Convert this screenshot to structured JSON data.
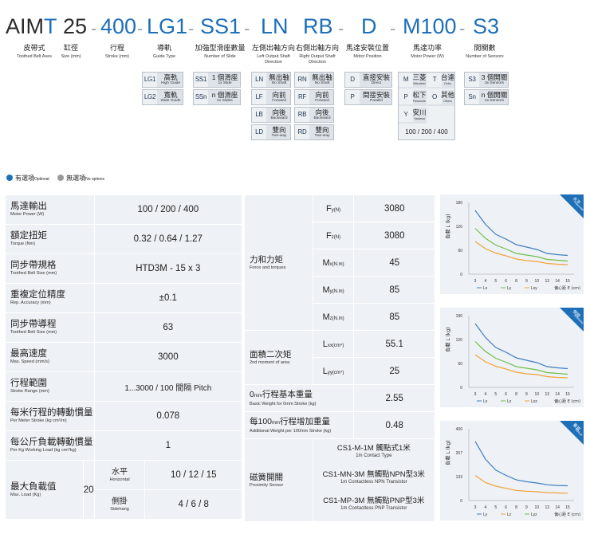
{
  "model_code": {
    "seg_aim": "AIM",
    "seg_t": "T",
    "seg_25": "25",
    "seg_400": "400",
    "seg_lg1": "LG1",
    "seg_ss1": "SS1",
    "seg_ln": "LN",
    "seg_rb": "RB",
    "seg_d": "D",
    "seg_m100": "M100",
    "seg_s3": "S3",
    "dash": "-"
  },
  "labels": [
    {
      "zh": "皮帶式",
      "en": "Toothed Belt Axes"
    },
    {
      "zh": "缸徑",
      "en": "Size (mm)"
    },
    {
      "zh": "行程",
      "en": "Stroke (mm)"
    },
    {
      "zh": "導軌",
      "en": "Guide Type"
    },
    {
      "zh": "加強型滑座數量",
      "en": "Number of Slide"
    },
    {
      "zh": "左側出軸方向",
      "en": "Left Output Shaft Direction"
    },
    {
      "zh": "右側出軸方向",
      "en": "Right Output Shaft Direction"
    },
    {
      "zh": "馬達安裝位置",
      "en": "Motor Position"
    },
    {
      "zh": "馬達功率",
      "en": "Motor Power (W)"
    },
    {
      "zh": "開關數",
      "en": "Number of Sensors"
    }
  ],
  "guide": [
    {
      "code": "LG1",
      "zh": "高軌",
      "en": "High Guide"
    },
    {
      "code": "LG2",
      "zh": "寬軌",
      "en": "Wide Guide"
    }
  ],
  "slide": [
    {
      "code": "SS1",
      "zh": "1 個滑座",
      "en": "1x Slide"
    },
    {
      "code": "SSn",
      "zh": "n 個滑座",
      "en": "nx Slides"
    }
  ],
  "left_shaft": [
    {
      "code": "LN",
      "zh": "無出軸",
      "en": "No Shaft"
    },
    {
      "code": "LF",
      "zh": "向前",
      "en": "Forward"
    },
    {
      "code": "LB",
      "zh": "向後",
      "en": "Backward"
    },
    {
      "code": "LD",
      "zh": "雙向",
      "en": "Two-way"
    }
  ],
  "right_shaft": [
    {
      "code": "RN",
      "zh": "無出軸",
      "en": "No Shaft"
    },
    {
      "code": "RF",
      "zh": "向前",
      "en": "Forward"
    },
    {
      "code": "RB",
      "zh": "向後",
      "en": "Backward"
    },
    {
      "code": "RD",
      "zh": "雙向",
      "en": "Two-way"
    }
  ],
  "motor_pos": [
    {
      "code": "D",
      "zh": "直接安裝",
      "en": "Direct"
    },
    {
      "code": "P",
      "zh": "間接安裝",
      "en": "Parallel"
    }
  ],
  "motor_brand": [
    {
      "code": "M",
      "zh": "三菱",
      "en": "Mitsubishi"
    },
    {
      "code": "T",
      "zh": "台達",
      "en": "Delta"
    },
    {
      "code": "P",
      "zh": "松下",
      "en": "Panasonic"
    },
    {
      "code": "O",
      "zh": "其他",
      "en": "Others"
    },
    {
      "code": "Y",
      "zh": "安川",
      "en": "Yaskawa"
    }
  ],
  "motor_power_values": "100 / 200 / 400",
  "sensors": [
    {
      "code": "S3",
      "zh": "3 個開關",
      "en": "3x Sensors"
    },
    {
      "code": "Sn",
      "zh": "n 個開關",
      "en": "nx Sensors"
    }
  ],
  "legend": {
    "optional_zh": "有選項",
    "optional_en": "Optional",
    "none_zh": "無選項",
    "none_en": "No options",
    "optional_color": "#1d6fb8",
    "none_color": "#9a9a9a"
  },
  "spec_left": [
    {
      "zh": "馬達輸出",
      "en": "Motor Power (W)",
      "value": "100 / 200 / 400"
    },
    {
      "zh": "額定扭矩",
      "en": "Torque (Nm)",
      "value": "0.32 / 0.64 / 1.27"
    },
    {
      "zh": "同步帶規格",
      "en": "Toothed Belt Size (mm)",
      "value": "HTD3M - 15 x 3"
    },
    {
      "zh": "重複定位精度",
      "en": "Rep. Accuracy (mm)",
      "value": "±0.1"
    },
    {
      "zh": "同步帶導程",
      "en": "Toothed Belt Size (mm)",
      "value": "63"
    },
    {
      "zh": "最高速度",
      "en": "Max. Speed (mm/s)",
      "value": "3000"
    },
    {
      "zh": "行程範圍",
      "en": "Stroke Range (mm)",
      "value": "1...3000 / 100 間隔 Pitch"
    },
    {
      "zh": "每米行程的轉動慣量",
      "en": "Per Meter Stroke (kg cm²/m)",
      "value": "0.078"
    },
    {
      "zh": "每公斤負載轉動慣量",
      "en": "Per Kg Working Load (kg cm²/kg)",
      "value": "1"
    }
  ],
  "max_load": {
    "zh": "最大負載值",
    "en": "Max. Load (Kg)",
    "value": "20",
    "horizontal_zh": "水平",
    "horizontal_en": "Horizontal",
    "horizontal_value": "10 / 12 / 15",
    "side_zh": "側掛",
    "side_en": "Sidehang",
    "side_value": "4 / 6 / 8"
  },
  "force": {
    "zh": "力和力矩",
    "en": "Force and torques",
    "rows": [
      {
        "sym": "F",
        "sub": "y",
        "unit": "(N)",
        "value": "3080"
      },
      {
        "sym": "F",
        "sub": "z",
        "unit": "(N)",
        "value": "3080"
      },
      {
        "sym": "M",
        "sub": "x",
        "unit": "(N.m)",
        "value": "45"
      },
      {
        "sym": "M",
        "sub": "y",
        "unit": "(N.m)",
        "value": "85"
      },
      {
        "sym": "M",
        "sub": "z",
        "unit": "(N.m)",
        "value": "85"
      }
    ]
  },
  "moment": {
    "zh": "面積二次矩",
    "en": "2nd moment of area",
    "rows": [
      {
        "sym": "L",
        "sub": "xx",
        "unit": "(cm⁴)",
        "value": "55.1"
      },
      {
        "sym": "L",
        "sub": "yy",
        "unit": "(cm⁴)",
        "value": "25"
      }
    ]
  },
  "weight0": {
    "zh_pre": "0",
    "zh_unit": "mm",
    "zh_post": "行程基本重量",
    "en": "Basic Weight for 0mm Stroke (kg)",
    "value": "2.55"
  },
  "weight100": {
    "zh_pre": "每100",
    "zh_unit": "mm",
    "zh_post": "行程增加重量",
    "en": "Additional Weight per 100mm Stroke (kg)",
    "value": "0.48"
  },
  "sensor_spec": {
    "zh": "磁簧開關",
    "en": "Proximity Sensor",
    "rows": [
      {
        "zh": "CS1-M-1M 觸點式1米",
        "en": "1m Contact Type"
      },
      {
        "zh": "CS1-MN-3M 無觸點NPN型3米",
        "en": "1m Contactless NPN Transistor"
      },
      {
        "zh": "CS1-MP-3M 無觸點PNP型3米",
        "en": "1m Contactless PNP Transistor"
      }
    ]
  },
  "chart_data": [
    {
      "type": "line",
      "corner_zh": "水平",
      "corner_en": "Horizontal",
      "ylabel": "負載 L (kg)",
      "xlabel": "偏心距 E (cm)",
      "yticks": [
        0,
        60,
        120,
        180
      ],
      "ylim": [
        0,
        180
      ],
      "xticks": [
        3,
        4,
        5,
        6,
        8,
        9,
        10,
        13,
        14,
        15
      ],
      "xlim": [
        3,
        15
      ],
      "colors": [
        "#3d7fc1",
        "#6fbf4a",
        "#f0a33a"
      ],
      "series": [
        {
          "name": "Lx",
          "x": [
            3,
            4,
            5,
            6,
            8,
            9,
            10,
            13,
            14,
            15
          ],
          "values": [
            160,
            125,
            100,
            88,
            74,
            68,
            62,
            52,
            49,
            47
          ]
        },
        {
          "name": "Ly",
          "x": [
            3,
            4,
            5,
            6,
            8,
            9,
            10,
            13,
            14,
            15
          ],
          "values": [
            115,
            90,
            73,
            63,
            52,
            48,
            44,
            37,
            35,
            33
          ]
        },
        {
          "name": "Lxy",
          "x": [
            3,
            4,
            5,
            6,
            8,
            9,
            10,
            13,
            14,
            15
          ],
          "values": [
            82,
            64,
            53,
            46,
            38,
            34,
            32,
            27,
            25,
            24
          ]
        }
      ]
    },
    {
      "type": "line",
      "corner_zh": "側掛",
      "corner_en": "Sidehang",
      "ylabel": "負載 L (kg)",
      "xlabel": "偏心距 E (cm)",
      "yticks": [
        0,
        60,
        120,
        180
      ],
      "ylim": [
        0,
        180
      ],
      "xticks": [
        3,
        4,
        5,
        6,
        8,
        9,
        10,
        13,
        14,
        15
      ],
      "xlim": [
        3,
        15
      ],
      "colors": [
        "#3d7fc1",
        "#6fbf4a",
        "#f0a33a"
      ],
      "series": [
        {
          "name": "Lx",
          "x": [
            3,
            4,
            5,
            6,
            8,
            9,
            10,
            13,
            14,
            15
          ],
          "values": [
            160,
            125,
            100,
            88,
            74,
            68,
            62,
            52,
            49,
            47
          ]
        },
        {
          "name": "Lz",
          "x": [
            3,
            4,
            5,
            6,
            8,
            9,
            10,
            13,
            14,
            15
          ],
          "values": [
            115,
            90,
            73,
            63,
            52,
            48,
            44,
            37,
            35,
            33
          ]
        },
        {
          "name": "Lxz",
          "x": [
            3,
            4,
            5,
            6,
            8,
            9,
            10,
            13,
            14,
            15
          ],
          "values": [
            82,
            64,
            53,
            46,
            38,
            34,
            32,
            27,
            25,
            24
          ]
        }
      ]
    },
    {
      "type": "line",
      "corner_zh": "垂直",
      "corner_en": "Vertical",
      "ylabel": "負載 L (kg)",
      "xlabel": "偏心距 E (cm)",
      "yticks": [
        0,
        133,
        267,
        400
      ],
      "ylim": [
        0,
        400
      ],
      "xticks": [
        3,
        4,
        5,
        6,
        8,
        9,
        10,
        13,
        14,
        15
      ],
      "xlim": [
        3,
        15
      ],
      "colors": [
        "#3d7fc1",
        "#f0a33a",
        "#6fbf4a"
      ],
      "series": [
        {
          "name": "Ly",
          "x": [
            3,
            4,
            5,
            6,
            8,
            9,
            10,
            13,
            14,
            15
          ],
          "values": [
            330,
            230,
            170,
            140,
            115,
            105,
            98,
            88,
            84,
            82
          ]
        },
        {
          "name": "Lz",
          "x": [
            3,
            4,
            5,
            6,
            8,
            9,
            10,
            13,
            14,
            15
          ],
          "values": [
            140,
            100,
            80,
            68,
            56,
            52,
            49,
            44,
            42,
            41
          ]
        }
      ],
      "legend_extra": "Lyz"
    }
  ]
}
